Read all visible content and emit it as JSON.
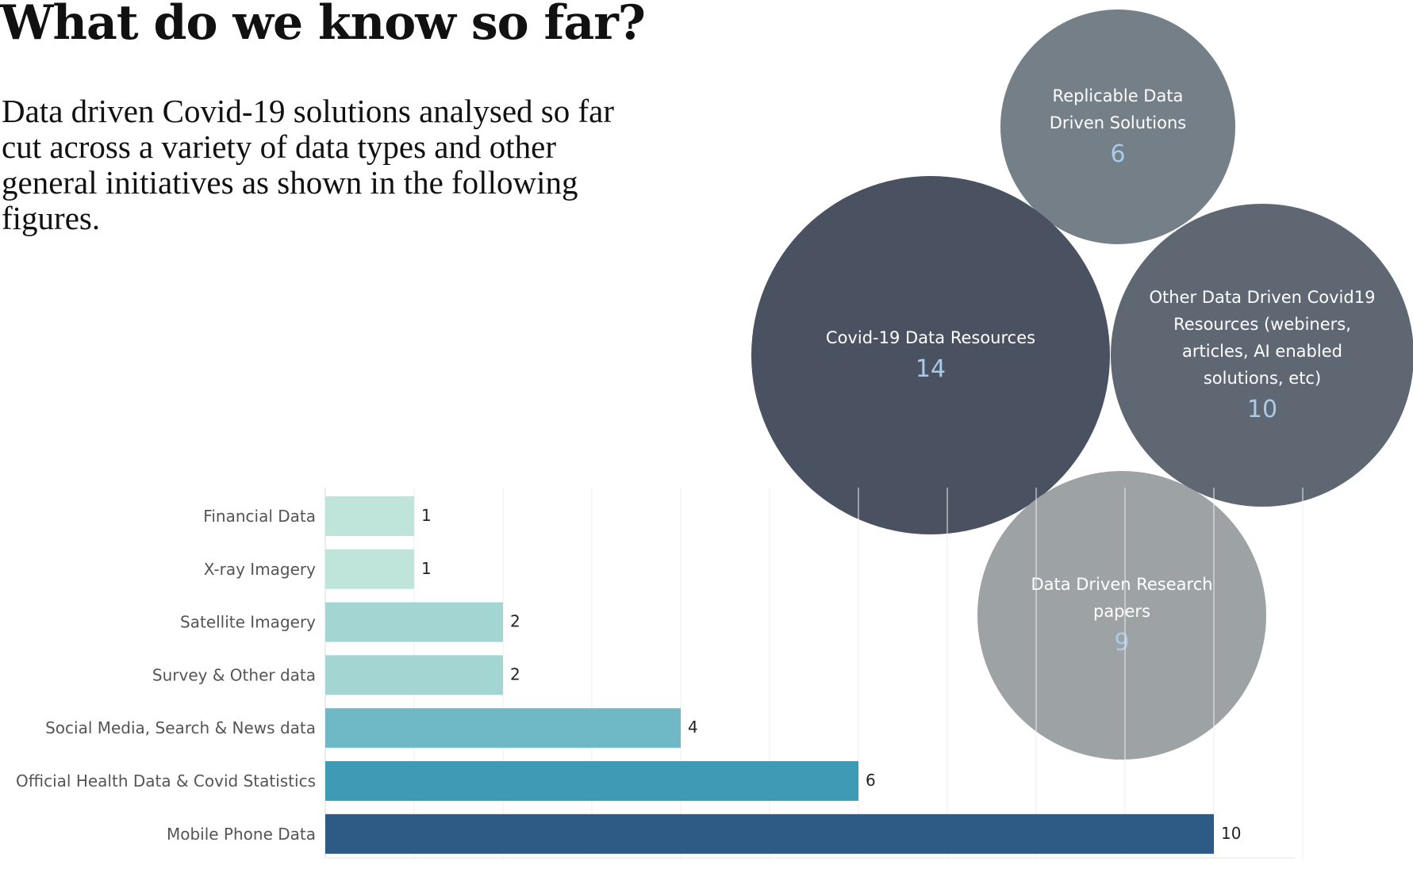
{
  "heading": {
    "title": "What do we know so far?",
    "intro": "Data driven Covid-19 solutions analysed so far cut across a variety of data types and other general initiatives as shown in the following figures."
  },
  "chart_data": [
    {
      "type": "bar",
      "orientation": "horizontal",
      "categories": [
        "Financial Data",
        "X-ray Imagery",
        "Satellite Imagery",
        "Survey & Other data",
        "Social Media, Search & News data",
        "Official Health Data & Covid Statistics",
        "Mobile Phone Data"
      ],
      "values": [
        1,
        1,
        2,
        2,
        4,
        6,
        10
      ],
      "colors": [
        "#bfe4da",
        "#bfe4da",
        "#a3d5d3",
        "#a3d5d3",
        "#6fb8c6",
        "#3f9bb5",
        "#2d5b86"
      ],
      "xlim": [
        0,
        11
      ],
      "grid": true,
      "data_labels": true
    },
    {
      "type": "bubble",
      "series": [
        {
          "label_lines": [
            "Replicable Data",
            "Driven Solutions"
          ],
          "value": 6,
          "color": "#757f87"
        },
        {
          "label_lines": [
            "Covid-19 Data Resources"
          ],
          "value": 14,
          "color": "#4a5160"
        },
        {
          "label_lines": [
            "Other Data Driven Covid19",
            "Resources (webiners,",
            "articles, AI enabled",
            "solutions, etc)"
          ],
          "value": 10,
          "color": "#5f6773"
        },
        {
          "label_lines": [
            "Data Driven Research",
            "papers"
          ],
          "value": 9,
          "color": "#9da2a4"
        }
      ]
    }
  ]
}
